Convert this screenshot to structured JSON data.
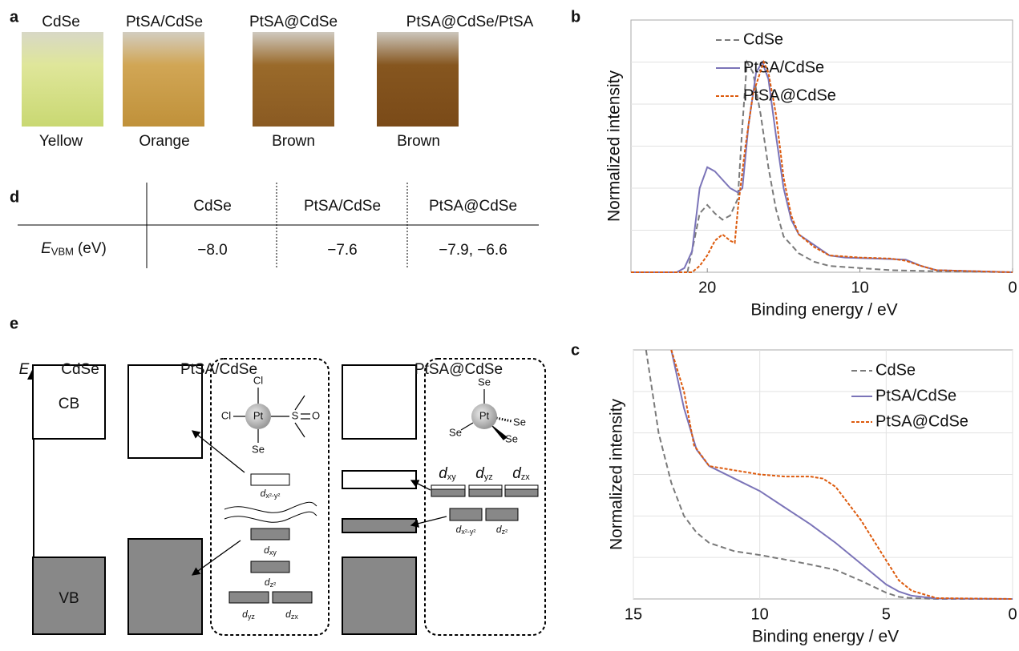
{
  "panel_labels": [
    "a",
    "b",
    "c",
    "d",
    "e"
  ],
  "photos": {
    "samples": [
      "CdSe",
      "PtSA/CdSe",
      "PtSA@CdSe",
      "PtSA@CdSe/PtSA"
    ],
    "colors": [
      "Yellow",
      "Orange",
      "Brown",
      "Brown"
    ]
  },
  "table": {
    "columns": [
      "CdSe",
      "PtSA/CdSe",
      "PtSA@CdSe"
    ],
    "row_label": {
      "symbol": "E",
      "subscript": "VBM",
      "unit": "(eV)"
    },
    "values": [
      "−8.0",
      "−7.6",
      "−7.9, −6.6"
    ]
  },
  "diagram": {
    "axis": "E",
    "columns": [
      "CdSe",
      "PtSA/CdSe",
      "PtSA@CdSe"
    ],
    "bands": [
      "CB",
      "VB"
    ],
    "complex1": {
      "metal": "Pt",
      "ligands": [
        "Cl",
        "Cl",
        "Se",
        "S",
        "O"
      ]
    },
    "complex2": {
      "metal": "Pt",
      "ligands": [
        "Se",
        "Se",
        "Se",
        "Se"
      ]
    },
    "orbitals1": [
      {
        "symbol": "d",
        "subscript": "x²-y²"
      },
      {
        "symbol": "d",
        "subscript": "xy"
      },
      {
        "symbol": "d",
        "subscript": "z²"
      },
      {
        "symbol": "d",
        "subscript": "yz"
      },
      {
        "symbol": "d",
        "subscript": "zx"
      }
    ],
    "orbitals2": [
      {
        "symbol": "d",
        "subscript": "xy"
      },
      {
        "symbol": "d",
        "subscript": "yz"
      },
      {
        "symbol": "d",
        "subscript": "zx"
      },
      {
        "symbol": "d",
        "subscript": "x²-y²"
      },
      {
        "symbol": "d",
        "subscript": "z²"
      }
    ]
  },
  "chart_data": [
    {
      "type": "line",
      "x_label": "Binding energy / eV",
      "y_label": "Normalized intensity",
      "xlim": [
        25,
        0
      ],
      "xticks": [
        20,
        10,
        0
      ],
      "ylim": [
        0,
        1.2
      ],
      "yticks": [
        0.2,
        0.4,
        0.6,
        0.8,
        1.0
      ],
      "grid": "y",
      "legend": "top-center",
      "series": [
        {
          "name": "CdSe",
          "color": "#7a7a7a",
          "line_style": "dashed",
          "x": [
            21.3,
            21,
            20.5,
            20,
            19.5,
            19,
            18.5,
            18,
            17.7,
            17.4,
            17,
            16.5,
            16,
            15.5,
            15,
            14,
            13,
            12,
            10,
            8,
            5,
            0
          ],
          "values": [
            0,
            0.1,
            0.28,
            0.32,
            0.28,
            0.25,
            0.27,
            0.35,
            0.7,
            1.0,
            0.95,
            0.75,
            0.5,
            0.3,
            0.17,
            0.09,
            0.05,
            0.03,
            0.02,
            0.01,
            0.005,
            0
          ]
        },
        {
          "name": "PtSA/CdSe",
          "color": "#7b74b8",
          "line_style": "solid",
          "x": [
            25,
            22,
            21.5,
            21,
            20.5,
            20,
            19.5,
            19,
            18.5,
            18,
            17.7,
            17.3,
            16.8,
            16.4,
            16,
            15.5,
            15,
            14.5,
            14,
            13,
            12,
            11,
            9,
            7,
            6,
            5,
            0
          ],
          "values": [
            0,
            0,
            0.02,
            0.1,
            0.4,
            0.5,
            0.48,
            0.44,
            0.4,
            0.38,
            0.4,
            0.7,
            0.95,
            1.0,
            0.92,
            0.65,
            0.4,
            0.25,
            0.18,
            0.13,
            0.08,
            0.07,
            0.065,
            0.06,
            0.03,
            0.01,
            0
          ]
        },
        {
          "name": "PtSA@CdSe",
          "color": "#dd5a0c",
          "line_style": "dotted",
          "x": [
            25,
            21,
            20.5,
            20,
            19.5,
            19,
            18.5,
            18.2,
            18,
            17.5,
            17,
            16.3,
            16,
            15.5,
            15,
            14.5,
            14,
            13,
            12,
            10,
            8,
            7,
            6,
            5,
            0
          ],
          "values": [
            0,
            0,
            0.03,
            0.08,
            0.15,
            0.18,
            0.15,
            0.14,
            0.3,
            0.6,
            0.85,
            1.0,
            0.95,
            0.75,
            0.45,
            0.27,
            0.18,
            0.12,
            0.08,
            0.07,
            0.065,
            0.055,
            0.03,
            0.01,
            0
          ]
        }
      ]
    },
    {
      "type": "line",
      "x_label": "Binding energy / eV",
      "y_label": "Normalized intensity",
      "xlim": [
        15,
        0
      ],
      "xticks": [
        15,
        10,
        5,
        0
      ],
      "ylim": [
        0,
        6
      ],
      "yticks": [
        1,
        2,
        3,
        4,
        5
      ],
      "grid": "both",
      "legend": "top-right",
      "series": [
        {
          "name": "CdSe",
          "color": "#7a7a7a",
          "line_style": "dashed",
          "x": [
            14.5,
            14,
            13.5,
            13,
            12.5,
            12,
            11,
            10,
            9,
            8,
            7,
            6,
            5,
            4.5,
            4,
            3,
            0
          ],
          "values": [
            6,
            4,
            2.8,
            2.0,
            1.6,
            1.35,
            1.15,
            1.06,
            0.95,
            0.83,
            0.7,
            0.44,
            0.15,
            0.05,
            0.02,
            0,
            0
          ]
        },
        {
          "name": "PtSA/CdSe",
          "color": "#7b74b8",
          "line_style": "solid",
          "x": [
            13.5,
            13,
            12.5,
            12,
            11,
            10,
            9,
            8,
            7,
            6,
            5,
            4.5,
            4,
            3,
            0
          ],
          "values": [
            6,
            4.6,
            3.6,
            3.2,
            2.9,
            2.6,
            2.2,
            1.8,
            1.35,
            0.85,
            0.35,
            0.18,
            0.08,
            0.01,
            0
          ]
        },
        {
          "name": "PtSA@CdSe",
          "color": "#dd5a0c",
          "line_style": "dotted",
          "x": [
            13.5,
            13,
            12.6,
            12,
            11,
            10,
            9,
            8,
            7.5,
            7,
            6,
            5,
            4.5,
            4,
            3,
            0
          ],
          "values": [
            6,
            5,
            3.7,
            3.2,
            3.1,
            3.0,
            2.95,
            2.95,
            2.9,
            2.7,
            1.9,
            0.93,
            0.45,
            0.2,
            0.02,
            0
          ]
        }
      ]
    }
  ]
}
